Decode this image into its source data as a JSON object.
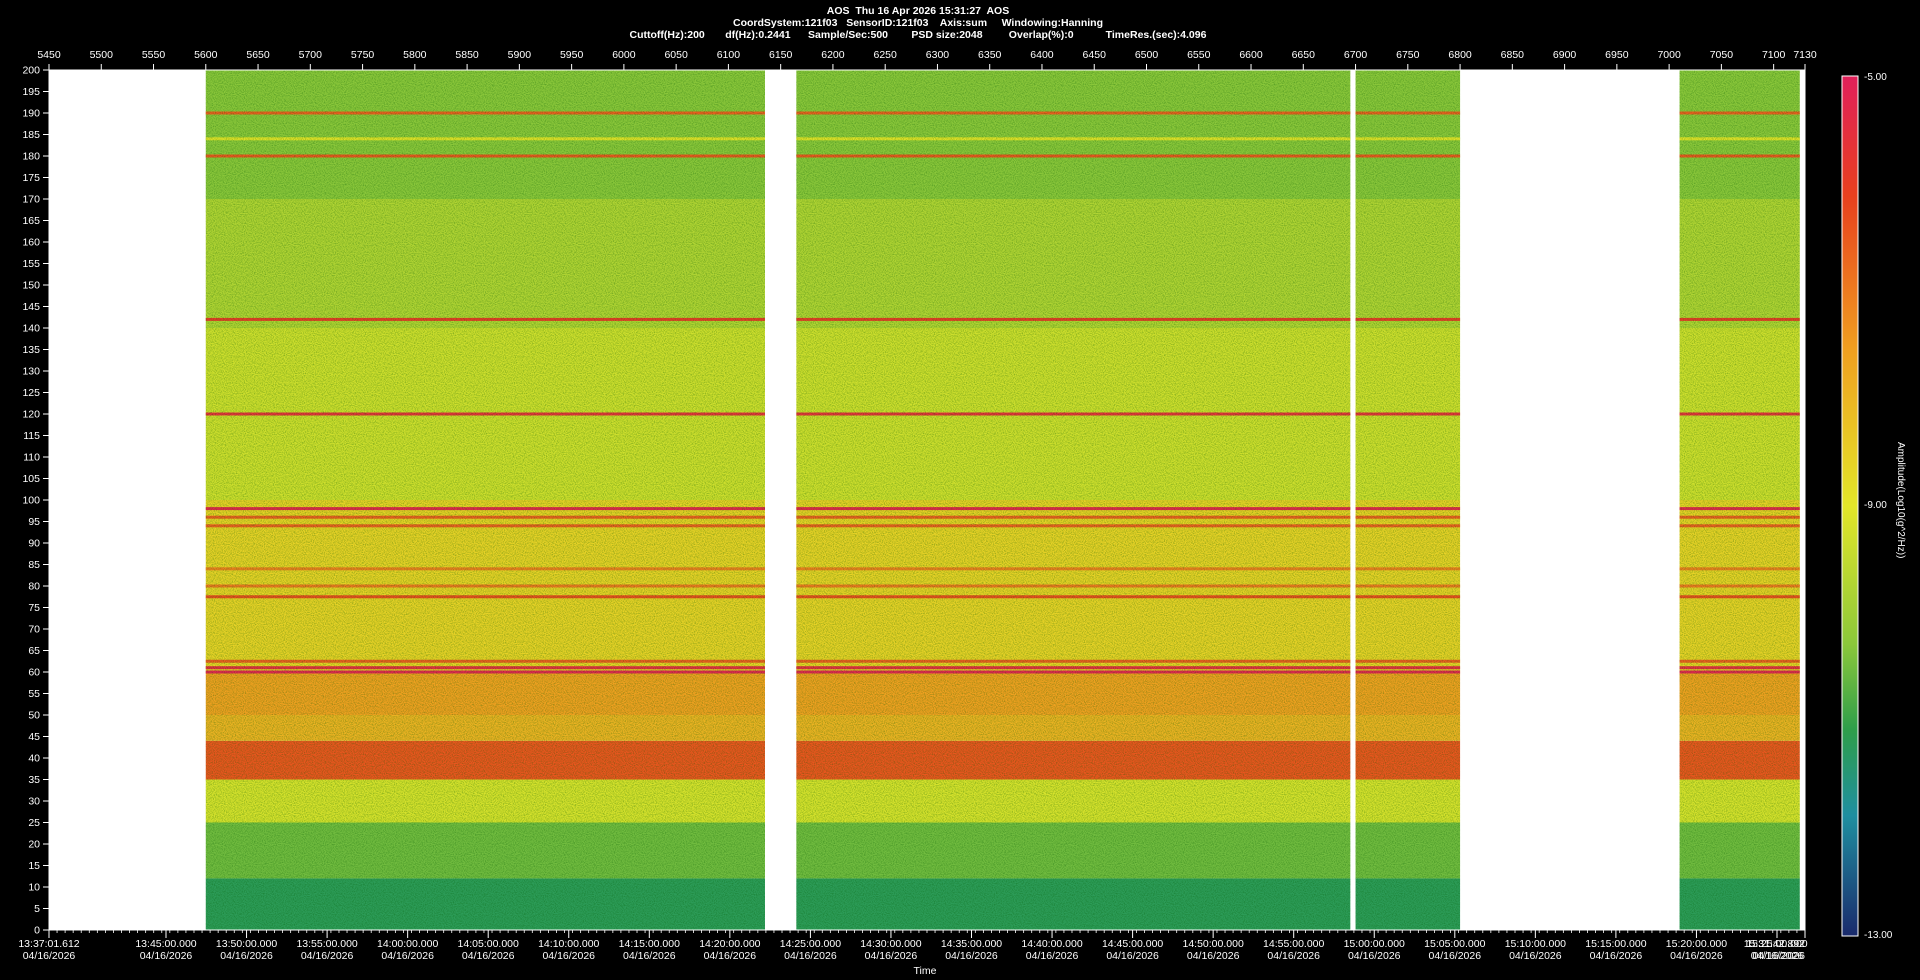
{
  "header": {
    "line1": "AOS  Thu 16 Apr 2026 15:31:27  AOS",
    "line2": "CoordSystem:121f03   SensorID:121f03    Axis:sum     Windowing:Hanning",
    "line3": "Cuttoff(Hz):200       df(Hz):0.2441      Sample/Sec:500        PSD size:2048         Overlap(%):0           TimeRes.(sec):4.096"
  },
  "colors": {
    "background": "#000000",
    "empty": "#ffffff",
    "text": "#ffffff",
    "scale": [
      "#1a2a6c",
      "#1f8fa0",
      "#2e9e4a",
      "#8cc83a",
      "#e3e629",
      "#f0a020",
      "#e8401e",
      "#e0205a"
    ]
  },
  "chart_data": {
    "type": "heatmap",
    "title": "",
    "xlabel": "Time",
    "ylabel": "",
    "top_axis": {
      "min": 5450,
      "max": 7130,
      "ticks": [
        "5450",
        "5500",
        "5550",
        "5600",
        "5650",
        "5700",
        "5750",
        "5800",
        "5850",
        "5900",
        "5950",
        "6000",
        "6050",
        "6100",
        "6150",
        "6200",
        "6250",
        "6300",
        "6350",
        "6400",
        "6450",
        "6500",
        "6550",
        "6600",
        "6650",
        "6700",
        "6750",
        "6800",
        "6850",
        "6900",
        "6950",
        "7000",
        "7050",
        "7100",
        "7130"
      ]
    },
    "y_axis": {
      "min": 0,
      "max": 200,
      "step": 5,
      "ticks": [
        "0",
        "5",
        "10",
        "15",
        "20",
        "25",
        "30",
        "35",
        "40",
        "45",
        "50",
        "55",
        "60",
        "65",
        "70",
        "75",
        "80",
        "85",
        "90",
        "95",
        "100",
        "105",
        "110",
        "115",
        "120",
        "125",
        "130",
        "135",
        "140",
        "145",
        "150",
        "155",
        "160",
        "165",
        "170",
        "175",
        "180",
        "185",
        "190",
        "195",
        "200"
      ]
    },
    "x_axis": {
      "start_label": "13:37:01.612",
      "end_label": "15:31:42.892",
      "time_labels": [
        "13:45:00.000",
        "13:50:00.000",
        "13:55:00.000",
        "14:00:00.000",
        "14:05:00.000",
        "14:10:00.000",
        "14:15:00.000",
        "14:20:00.000",
        "14:25:00.000",
        "14:30:00.000",
        "14:35:00.000",
        "14:40:00.000",
        "14:45:00.000",
        "14:50:00.000",
        "14:55:00.000",
        "15:00:00.000",
        "15:05:00.000",
        "15:10:00.000",
        "15:15:00.000",
        "15:20:00.000",
        "15:25:00.000"
      ],
      "date_label": "04/16/2026"
    },
    "data_segments": [
      {
        "start": 5600,
        "end": 6135
      },
      {
        "start": 6165,
        "end": 6695
      },
      {
        "start": 6700,
        "end": 6800
      },
      {
        "start": 7010,
        "end": 7125
      }
    ],
    "spectral_bands": [
      {
        "low": 0,
        "high": 12,
        "level": -10.9
      },
      {
        "low": 12,
        "high": 25,
        "level": -9.9
      },
      {
        "low": 25,
        "high": 35,
        "level": -8.6
      },
      {
        "low": 35,
        "high": 44,
        "level": -6.4
      },
      {
        "low": 44,
        "high": 50,
        "level": -7.6
      },
      {
        "low": 50,
        "high": 60,
        "level": -7.3
      },
      {
        "low": 60,
        "high": 100,
        "level": -8.1
      },
      {
        "low": 100,
        "high": 140,
        "level": -8.7
      },
      {
        "low": 140,
        "high": 170,
        "level": -9.1
      },
      {
        "low": 170,
        "high": 200,
        "level": -9.6
      }
    ],
    "lines_hz": [
      {
        "freq": 60,
        "level": -5.2
      },
      {
        "freq": 61,
        "level": -5.5
      },
      {
        "freq": 62.5,
        "level": -6.5
      },
      {
        "freq": 77.5,
        "level": -6.3
      },
      {
        "freq": 80,
        "level": -6.8
      },
      {
        "freq": 84,
        "level": -6.9
      },
      {
        "freq": 94,
        "level": -6.5
      },
      {
        "freq": 96,
        "level": -6.5
      },
      {
        "freq": 98,
        "level": -5.3
      },
      {
        "freq": 120,
        "level": -5.6
      },
      {
        "freq": 142,
        "level": -6.0
      },
      {
        "freq": 180,
        "level": -6.4
      },
      {
        "freq": 184,
        "level": -8.4
      },
      {
        "freq": 190,
        "level": -6.5
      }
    ],
    "colorbar": {
      "min": -13.0,
      "max": -5.0,
      "labels": [
        "-5.00",
        "-9.00",
        "-13.00"
      ],
      "title": "Amplitude(Log10(g^2/Hz))"
    }
  }
}
